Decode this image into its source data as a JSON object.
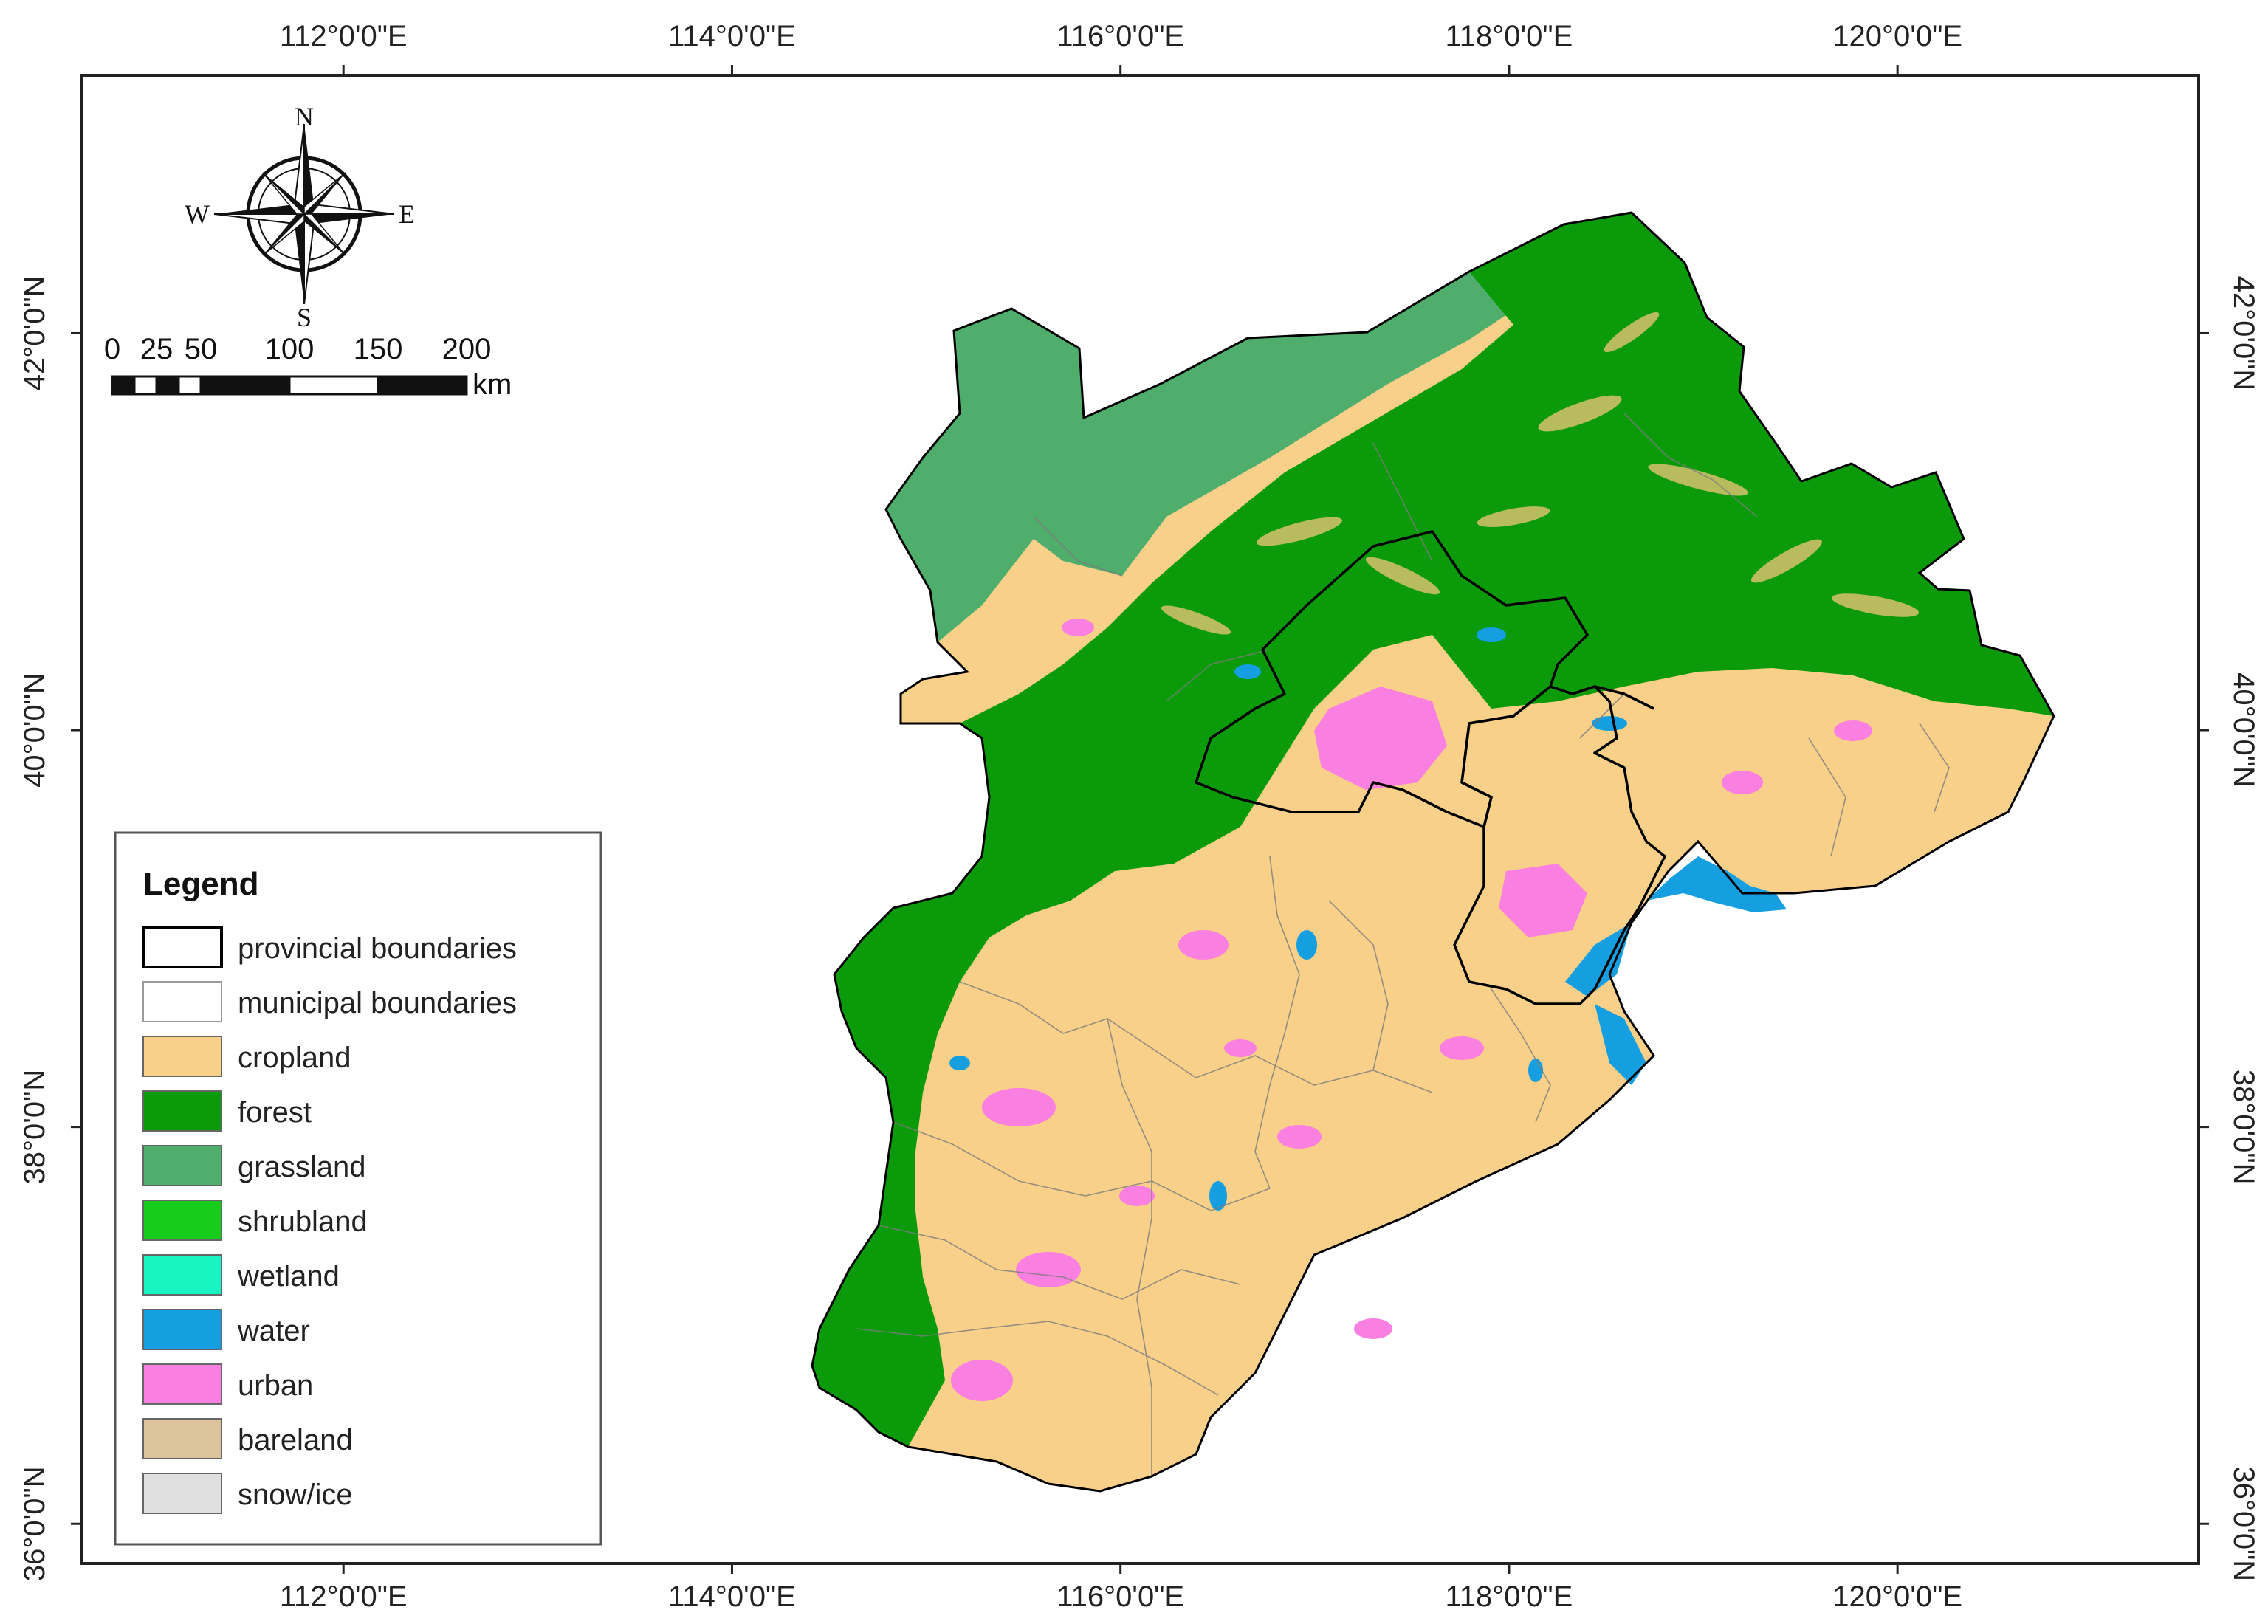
{
  "map": {
    "longitude_ticks": [
      "112°0'0\"E",
      "114°0'0\"E",
      "116°0'0\"E",
      "118°0'0\"E",
      "120°0'0\"E"
    ],
    "latitude_ticks": [
      "42°0'0\"N",
      "40°0'0\"N",
      "38°0'0\"N",
      "36°0'0\"N"
    ],
    "lon_range": [
      110.65,
      121.55
    ],
    "lat_range": [
      35.8,
      43.3
    ]
  },
  "compass": {
    "n": "N",
    "s": "S",
    "e": "E",
    "w": "W"
  },
  "scale_bar": {
    "labels": [
      "0",
      "25",
      "50",
      "100",
      "150",
      "200"
    ],
    "unit": "km"
  },
  "legend": {
    "title": "Legend",
    "items": [
      {
        "label": "provincial boundaries",
        "type": "line",
        "color": "#000000"
      },
      {
        "label": "municipal boundaries",
        "type": "line",
        "color": "#9a9a9a"
      },
      {
        "label": "cropland",
        "type": "fill",
        "color": "#f9d089"
      },
      {
        "label": "forest",
        "type": "fill",
        "color": "#0a9a0a"
      },
      {
        "label": "grassland",
        "type": "fill",
        "color": "#4fae6c"
      },
      {
        "label": "shrubland",
        "type": "fill",
        "color": "#17cc1a"
      },
      {
        "label": "wetland",
        "type": "fill",
        "color": "#19f5c2"
      },
      {
        "label": "water",
        "type": "fill",
        "color": "#169fe0"
      },
      {
        "label": "urban",
        "type": "fill",
        "color": "#f97fe0"
      },
      {
        "label": "bareland",
        "type": "fill",
        "color": "#dbc39c"
      },
      {
        "label": "snow/ice",
        "type": "fill",
        "color": "#e0e0e0"
      }
    ]
  }
}
